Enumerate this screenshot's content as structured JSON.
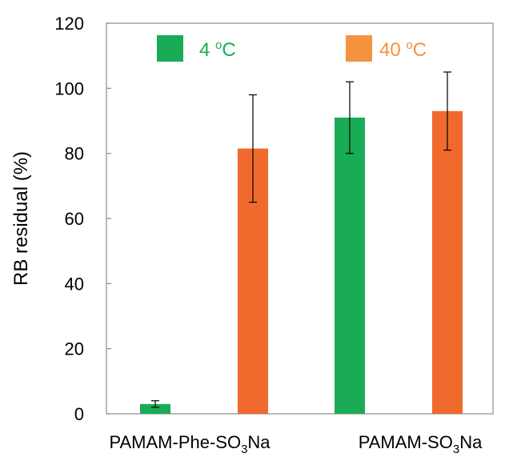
{
  "chart_data": {
    "type": "bar",
    "categories": [
      "PAMAM-Phe-SO3Na",
      "PAMAM-SO3Na"
    ],
    "category_labels": [
      {
        "base": "PAMAM-Phe-SO",
        "sub": "3",
        "tail": "Na"
      },
      {
        "base": "PAMAM-SO",
        "sub": "3",
        "tail": "Na"
      }
    ],
    "series": [
      {
        "name": "4 oC",
        "name_parts": {
          "num": "4 ",
          "sup": "o",
          "unit": "C"
        },
        "color": "#1aab56",
        "values": [
          3,
          91
        ],
        "errors": [
          1,
          11
        ]
      },
      {
        "name": "40 oC",
        "name_parts": {
          "num": "40 ",
          "sup": "o",
          "unit": "C"
        },
        "color": "#f06a2e",
        "values": [
          81.5,
          93
        ],
        "errors": [
          16.5,
          12
        ]
      }
    ],
    "ylabel": "RB residual  (%)",
    "ylim": [
      0,
      120
    ],
    "yticks": [
      0,
      20,
      40,
      60,
      80,
      100,
      120
    ],
    "legend_position": "top",
    "legend_colors": [
      "#1aab56",
      "#f5923e"
    ],
    "grid": false
  }
}
